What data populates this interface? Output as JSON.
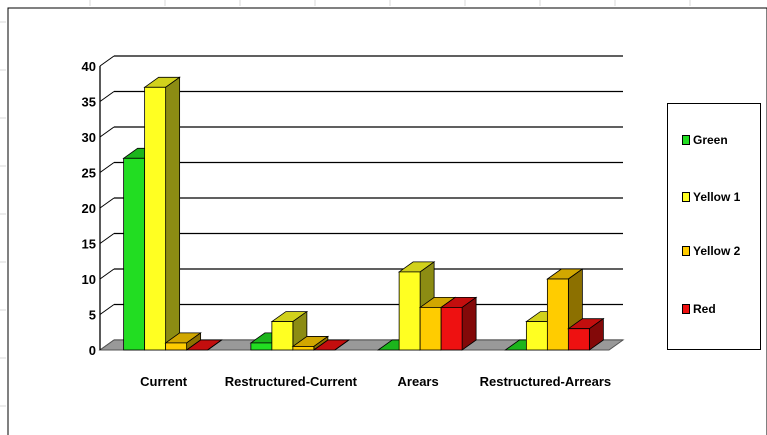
{
  "chart_data": {
    "type": "bar",
    "style": "3d-clustered",
    "categories": [
      "Current",
      "Restructured-Current",
      "Arears",
      "Restructured-Arrears"
    ],
    "series": [
      {
        "name": "Green",
        "color": "#22dd22",
        "values": [
          27,
          1,
          0,
          0
        ]
      },
      {
        "name": "Yellow 1",
        "color": "#ffff22",
        "values": [
          37,
          4,
          11,
          4
        ]
      },
      {
        "name": "Yellow 2",
        "color": "#ffcc00",
        "values": [
          1,
          0.5,
          6,
          10
        ]
      },
      {
        "name": "Red",
        "color": "#ee1111",
        "values": [
          0,
          0,
          6,
          3
        ]
      }
    ],
    "ylim": [
      0,
      40
    ],
    "yticks": [
      0,
      5,
      10,
      15,
      20,
      25,
      30,
      35,
      40
    ],
    "grid": true,
    "legend_position": "right",
    "floor_color": "#999999",
    "title": "",
    "xlabel": "",
    "ylabel": ""
  },
  "legend": {
    "items": [
      {
        "label": "Green",
        "color": "#22dd22"
      },
      {
        "label": "Yellow 1",
        "color": "#ffff22"
      },
      {
        "label": "Yellow 2",
        "color": "#ffcc00"
      },
      {
        "label": "Red",
        "color": "#ee1111"
      }
    ]
  }
}
